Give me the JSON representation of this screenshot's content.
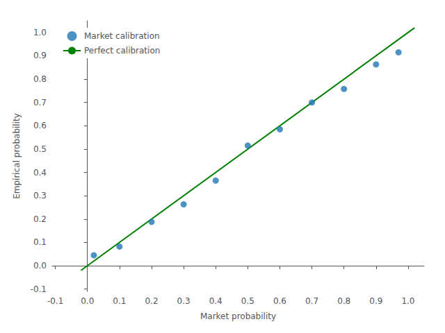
{
  "chart_data": {
    "type": "scatter",
    "xlabel": "Market probability",
    "ylabel": "Empirical probability",
    "series": [
      {
        "name": "Market calibration",
        "type": "scatter",
        "color": "#1f77b4",
        "x": [
          0.02,
          0.1,
          0.2,
          0.3,
          0.4,
          0.5,
          0.6,
          0.7,
          0.8,
          0.9,
          0.97
        ],
        "values": [
          0.045,
          0.082,
          0.188,
          0.263,
          0.365,
          0.515,
          0.585,
          0.7,
          0.758,
          0.863,
          0.915
        ]
      },
      {
        "name": "Perfect calibration",
        "type": "line",
        "color": "#008000",
        "x": [
          -0.02,
          1.02
        ],
        "values": [
          -0.02,
          1.02
        ]
      }
    ],
    "xlim": [
      -0.11,
      1.05
    ],
    "ylim": [
      -0.11,
      1.05
    ],
    "xticks": [
      -0.1,
      {
        "value": 0,
        "label": "0.0"
      },
      0.1,
      0.2,
      0.3,
      0.4,
      0.5,
      0.6,
      0.7,
      0.8,
      0.9,
      {
        "value": 1,
        "label": "1.0"
      }
    ],
    "yticks": [
      -0.1,
      {
        "value": 0,
        "label": "0.0"
      },
      0.1,
      0.2,
      0.3,
      0.4,
      0.5,
      0.6,
      0.7,
      0.8,
      0.9,
      {
        "value": 1,
        "label": "1.0"
      }
    ],
    "grid": false,
    "legend": "upper left"
  }
}
